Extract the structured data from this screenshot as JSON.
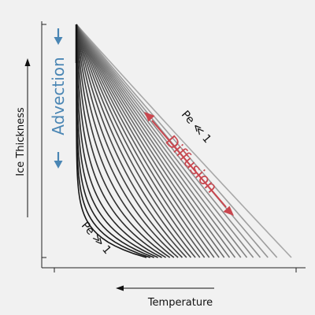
{
  "diagram": {
    "y_axis_label": "Ice Thickness",
    "x_axis_label": "Temperature",
    "advection_label": "Advection",
    "diffusion_label": "Diffusion",
    "pe_small_label": "Pe ≪ 1",
    "pe_large_label": "Pe ≫ 1",
    "curve_count": 28,
    "colors": {
      "background": "#f1f1f1",
      "axis": "#222222",
      "advection": "#4a86b4",
      "diffusion": "#c9474f",
      "curve_light": "#a8a8a8",
      "curve_dark": "#161616"
    }
  }
}
